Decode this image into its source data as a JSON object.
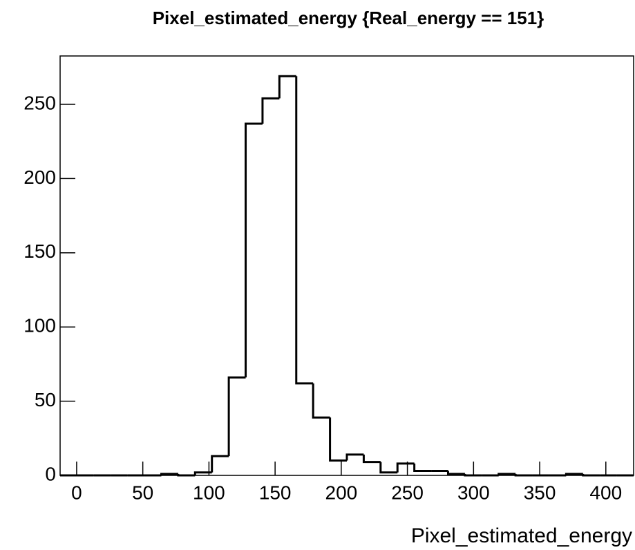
{
  "chart_data": {
    "type": "histogram",
    "title": "Pixel_estimated_energy {Real_energy == 151}",
    "x_label": "Pixel_estimated_energy",
    "bins": [
      -12.5,
      0.25,
      13,
      25.75,
      38.5,
      51.25,
      64,
      76.75,
      89.5,
      102.25,
      115,
      127.75,
      140.5,
      153.25,
      166,
      178.75,
      191.5,
      204.25,
      217,
      229.75,
      242.5,
      255.25,
      268,
      280.75,
      293.5,
      306.25,
      319,
      331.75,
      344.5,
      357.25,
      370,
      382.75,
      395.5,
      408.25,
      421
    ],
    "values": [
      0,
      0,
      0,
      0,
      0,
      0,
      1,
      0,
      2,
      13,
      66,
      237,
      254,
      269,
      62,
      39,
      10,
      14,
      9,
      2,
      8,
      3,
      3,
      1,
      0,
      0,
      1,
      0,
      0,
      0,
      1,
      0,
      0,
      0
    ],
    "color": "#000000",
    "xlim": [
      -12.5,
      421
    ],
    "xticks": [
      0,
      50,
      100,
      150,
      200,
      250,
      300,
      350,
      400
    ],
    "ylim": [
      0,
      282.6
    ],
    "yticks": [
      0,
      50,
      100,
      150,
      200,
      250
    ]
  }
}
